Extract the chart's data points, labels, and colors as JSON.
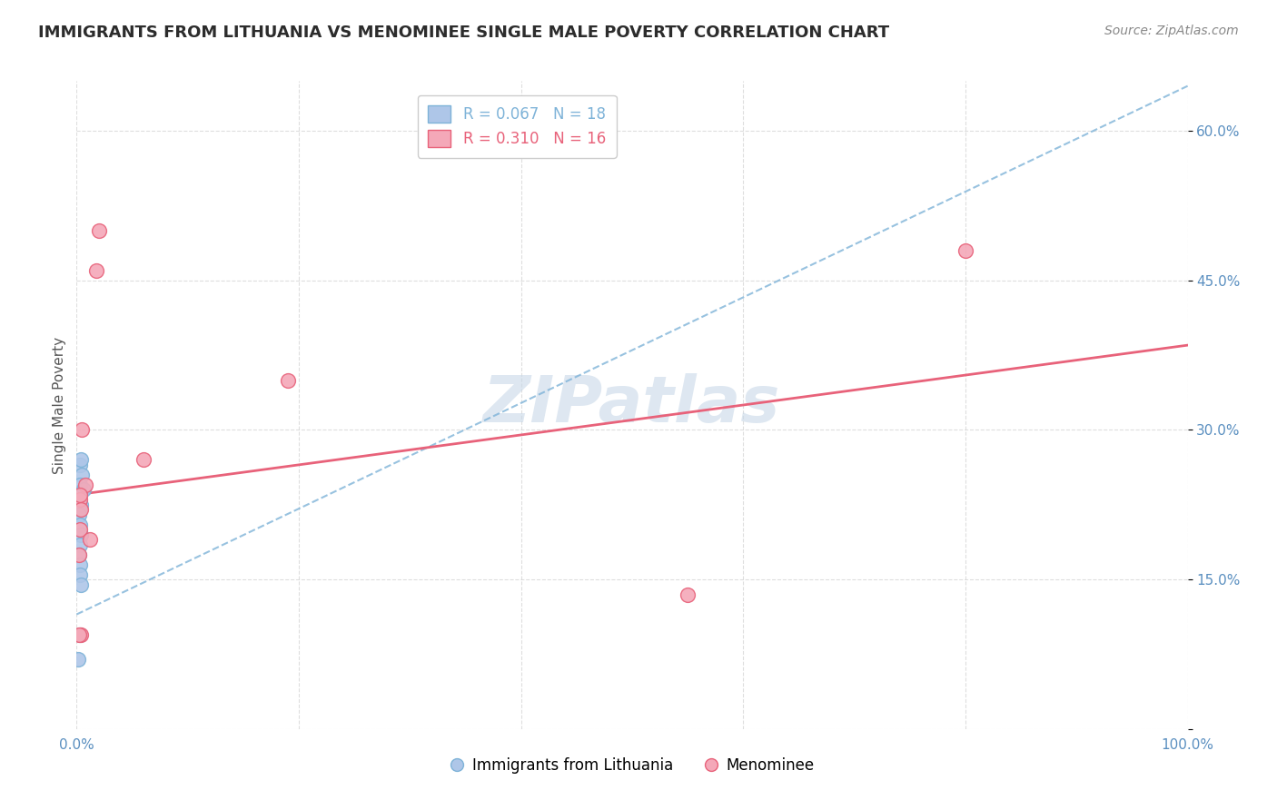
{
  "title": "IMMIGRANTS FROM LITHUANIA VS MENOMINEE SINGLE MALE POVERTY CORRELATION CHART",
  "source": "Source: ZipAtlas.com",
  "xlabel": "",
  "ylabel": "Single Male Poverty",
  "x_min": 0,
  "x_max": 1.0,
  "y_min": 0,
  "y_max": 0.65,
  "x_ticks": [
    0.0,
    0.2,
    0.4,
    0.6,
    0.8,
    1.0
  ],
  "x_tick_labels": [
    "0.0%",
    "",
    "",
    "",
    "",
    "100.0%"
  ],
  "y_ticks": [
    0.0,
    0.15,
    0.3,
    0.45,
    0.6
  ],
  "y_tick_labels": [
    "",
    "15.0%",
    "30.0%",
    "45.0%",
    "60.0%"
  ],
  "blue_label": "Immigrants from Lithuania",
  "pink_label": "Menominee",
  "blue_R": "0.067",
  "blue_N": "18",
  "pink_R": "0.310",
  "pink_N": "16",
  "blue_color": "#aec6e8",
  "pink_color": "#f4a8b8",
  "blue_line_color": "#7eb3d8",
  "pink_line_color": "#e8627a",
  "watermark": "ZIPatlas",
  "watermark_color": "#c8d8e8",
  "title_color": "#2c2c2c",
  "tick_color": "#5a8fc0",
  "blue_x": [
    0.003,
    0.005,
    0.004,
    0.003,
    0.006,
    0.003,
    0.004,
    0.003,
    0.002,
    0.003,
    0.004,
    0.003,
    0.002,
    0.003,
    0.003,
    0.004,
    0.003,
    0.001
  ],
  "blue_y": [
    0.265,
    0.255,
    0.27,
    0.245,
    0.24,
    0.235,
    0.225,
    0.22,
    0.215,
    0.205,
    0.195,
    0.185,
    0.175,
    0.165,
    0.155,
    0.145,
    0.095,
    0.07
  ],
  "pink_x": [
    0.02,
    0.018,
    0.06,
    0.19,
    0.55,
    0.8,
    0.005,
    0.008,
    0.003,
    0.004,
    0.003,
    0.012,
    0.002,
    0.003,
    0.004,
    0.002
  ],
  "pink_y": [
    0.5,
    0.46,
    0.27,
    0.35,
    0.135,
    0.48,
    0.3,
    0.245,
    0.23,
    0.22,
    0.2,
    0.19,
    0.175,
    0.235,
    0.095,
    0.095
  ],
  "blue_line_x0": 0.0,
  "blue_line_y0": 0.115,
  "blue_line_x1": 1.0,
  "blue_line_y1": 0.645,
  "pink_line_x0": 0.0,
  "pink_line_y0": 0.235,
  "pink_line_x1": 1.0,
  "pink_line_y1": 0.385
}
